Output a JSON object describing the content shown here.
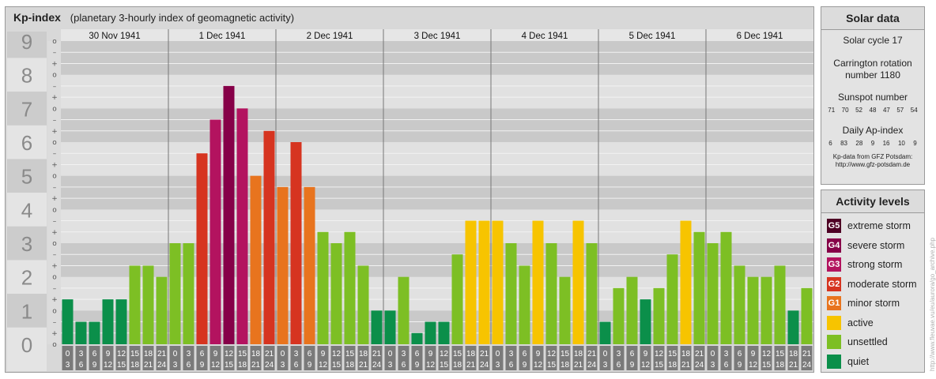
{
  "header": {
    "title": "Kp-index",
    "subtitle": "(planetary 3-hourly index of geomagnetic activity)"
  },
  "chart_data": {
    "type": "bar",
    "ylim": [
      0,
      9
    ],
    "y_ticks": [
      "0",
      "1",
      "2",
      "3",
      "4",
      "5",
      "6",
      "7",
      "8",
      "9"
    ],
    "minor_tick_marks": [
      "o",
      "+",
      "–"
    ],
    "days": [
      "30 Nov 1941",
      "1 Dec 1941",
      "2 Dec 1941",
      "3 Dec 1941",
      "4 Dec 1941",
      "5 Dec 1941",
      "6 Dec 1941"
    ],
    "hour_start_labels": [
      "0",
      "3",
      "6",
      "9",
      "12",
      "15",
      "18",
      "21"
    ],
    "hour_end_labels": [
      "3",
      "6",
      "9",
      "12",
      "15",
      "18",
      "21",
      "24"
    ],
    "values": [
      1.333,
      0.667,
      0.667,
      1.333,
      1.333,
      2.333,
      2.333,
      2.0,
      3.0,
      3.0,
      5.667,
      6.667,
      7.667,
      7.0,
      5.0,
      6.333,
      4.667,
      6.0,
      4.667,
      3.333,
      3.0,
      3.333,
      2.333,
      1.0,
      1.0,
      2.0,
      0.333,
      0.667,
      0.667,
      2.667,
      3.667,
      3.667,
      3.667,
      3.0,
      2.333,
      3.667,
      3.0,
      2.0,
      3.667,
      3.0,
      0.667,
      1.667,
      2.0,
      1.333,
      1.667,
      2.667,
      3.667,
      3.333,
      3.0,
      3.333,
      2.333,
      2.0,
      2.0,
      2.333,
      1.0,
      1.667
    ],
    "level_colors": {
      "quiet": "#0b8f4a",
      "unsettled": "#7dbf24",
      "active": "#f7c400",
      "G1": "#e8741e",
      "G2": "#d63420",
      "G3": "#b3135f",
      "G4": "#860048",
      "G5": "#4e0024"
    }
  },
  "solar": {
    "heading": "Solar data",
    "cycle": "Solar cycle 17",
    "carrington_1": "Carrington rotation",
    "carrington_2": "number 1180",
    "sunspot_heading": "Sunspot number",
    "sunspot_values": [
      "71",
      "70",
      "52",
      "48",
      "47",
      "57",
      "54"
    ],
    "ap_heading": "Daily Ap-index",
    "ap_values": [
      "6",
      "83",
      "28",
      "9",
      "16",
      "10",
      "9"
    ],
    "credit_1": "Kp-data from GFZ Potsdam:",
    "credit_2": "http://www.gfz-potsdam.de"
  },
  "legend": {
    "heading": "Activity levels",
    "items": [
      {
        "badge": "G5",
        "label": "extreme storm",
        "color": "#4e0024"
      },
      {
        "badge": "G4",
        "label": "severe storm",
        "color": "#860048"
      },
      {
        "badge": "G3",
        "label": "strong storm",
        "color": "#b3135f"
      },
      {
        "badge": "G2",
        "label": "moderate storm",
        "color": "#d63420"
      },
      {
        "badge": "G1",
        "label": "minor storm",
        "color": "#e8741e"
      },
      {
        "badge": "",
        "label": "active",
        "color": "#f7c400"
      },
      {
        "badge": "",
        "label": "unsettled",
        "color": "#7dbf24"
      },
      {
        "badge": "",
        "label": "quiet",
        "color": "#0b8f4a"
      }
    ]
  },
  "watermark": "http://www.fleuvae.vu/eu/aurora/go_archive.php"
}
